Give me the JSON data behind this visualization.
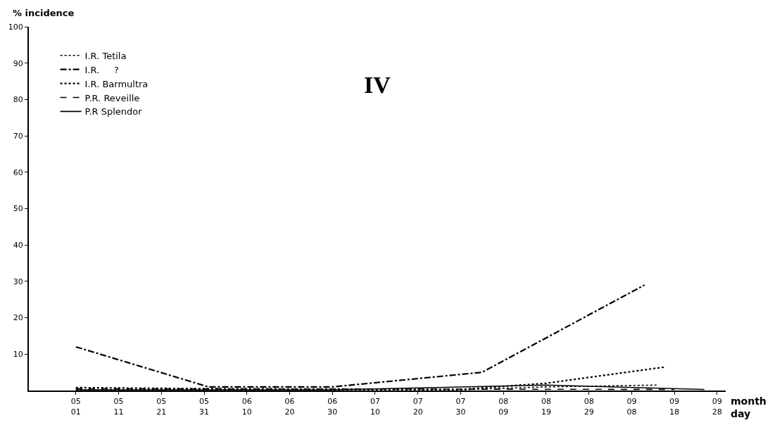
{
  "chart_data": {
    "type": "line",
    "title": "IV",
    "ylabel": "% incidence",
    "xlabel": "month\nday",
    "series": [
      {
        "name": "I.R. Tetila",
        "color": "#000000",
        "line_style": "dotted",
        "x": [
          "--05-01",
          "--07-30",
          "--08-19",
          "--09-14"
        ],
        "values": [
          0.2,
          0.2,
          1,
          1.5
        ]
      },
      {
        "name": "I.R.     ?",
        "color": "#000000",
        "line_style": "dashdot",
        "x": [
          "--05-01",
          "--06-01",
          "--06-30",
          "--08-04",
          "--09-11"
        ],
        "values": [
          12,
          1,
          1,
          5,
          29
        ]
      },
      {
        "name": "I.R. Barmultra",
        "color": "#000000",
        "line_style": "dotted",
        "x": [
          "--05-01",
          "--05-31",
          "--07-30",
          "--08-19",
          "--09-16"
        ],
        "values": [
          0.8,
          0.5,
          0.3,
          2,
          6.5
        ]
      },
      {
        "name": "P.R. Reveille",
        "color": "#000000",
        "line_style": "dashed",
        "x": [
          "--05-01",
          "--09-18"
        ],
        "values": [
          0.5,
          0.3
        ]
      },
      {
        "name": "P.R Splendor",
        "color": "#000000",
        "line_style": "solid",
        "x": [
          "--05-01",
          "--06-30",
          "--08-19",
          "--09-25"
        ],
        "values": [
          0.2,
          0.2,
          1.5,
          0.3
        ]
      }
    ],
    "xlim": [
      "--04-20",
      "--09-30"
    ],
    "xticks": [
      {
        "value": "--05-01",
        "label": "05\n01"
      },
      {
        "value": "--05-11",
        "label": "05\n11"
      },
      {
        "value": "--05-21",
        "label": "05\n21"
      },
      {
        "value": "--05-31",
        "label": "05\n31"
      },
      {
        "value": "--06-10",
        "label": "06\n10"
      },
      {
        "value": "--06-20",
        "label": "06\n20"
      },
      {
        "value": "--06-30",
        "label": "06\n30"
      },
      {
        "value": "--07-10",
        "label": "07\n10"
      },
      {
        "value": "--07-20",
        "label": "07\n20"
      },
      {
        "value": "--07-30",
        "label": "07\n30"
      },
      {
        "value": "--08-09",
        "label": "08\n09"
      },
      {
        "value": "--08-19",
        "label": "08\n19"
      },
      {
        "value": "--08-29",
        "label": "08\n29"
      },
      {
        "value": "--09-08",
        "label": "09\n08"
      },
      {
        "value": "--09-18",
        "label": "09\n18"
      },
      {
        "value": "--09-28",
        "label": "09\n28"
      }
    ],
    "ylim": [
      0,
      100
    ],
    "yticks": [
      10,
      20,
      30,
      40,
      50,
      60,
      70,
      80,
      90,
      100
    ],
    "legend": "top left",
    "marker": "none"
  }
}
